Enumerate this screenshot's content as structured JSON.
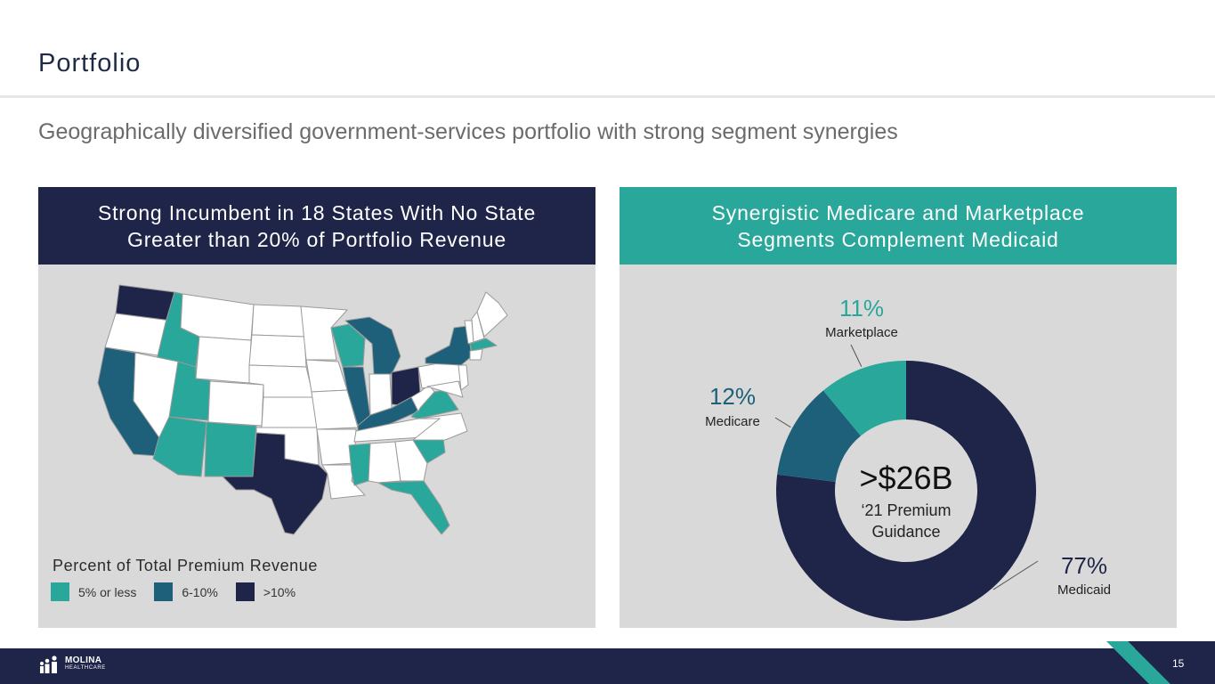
{
  "header": {
    "title": "Portfolio",
    "subtitle": "Geographically diversified government-services portfolio with strong segment synergies"
  },
  "left_panel": {
    "heading_line1": "Strong Incumbent in 18 States With No State",
    "heading_line2": "Greater than 20% of Portfolio Revenue",
    "map": {
      "tier_colors": {
        "low": "#2aa79b",
        "mid": "#1e5f79",
        "high": "#1f2549",
        "none": "#ffffff"
      },
      "states_5_or_less": [
        "ID",
        "UT",
        "AZ",
        "NM",
        "WI",
        "MS",
        "FL",
        "SC",
        "VA",
        "MA"
      ],
      "states_6_to_10": [
        "CA",
        "IL",
        "MI",
        "KY",
        "NY"
      ],
      "states_over_10": [
        "WA",
        "OH",
        "TX"
      ]
    },
    "legend_title": "Percent of Total Premium Revenue",
    "legend": [
      {
        "label": "5% or less",
        "color": "#2aa79b"
      },
      {
        "label": "6-10%",
        "color": "#1e5f79"
      },
      {
        "label": ">10%",
        "color": "#1f2549"
      }
    ]
  },
  "right_panel": {
    "heading_line1": "Synergistic Medicare and Marketplace",
    "heading_line2": "Segments Complement Medicaid",
    "chart_data": {
      "type": "pie",
      "categories": [
        "Medicaid",
        "Medicare",
        "Marketplace"
      ],
      "values": [
        77,
        12,
        11
      ],
      "value_labels": [
        "77%",
        "12%",
        "11%"
      ],
      "colors": [
        "#1f2549",
        "#1e5f79",
        "#2aa79b"
      ],
      "center_value": ">$26B",
      "center_label_line1": "‘21 Premium",
      "center_label_line2": "Guidance"
    }
  },
  "footer": {
    "logo_main": "MOLINA",
    "logo_sub": "HEALTHCARE",
    "page_number": "15"
  }
}
